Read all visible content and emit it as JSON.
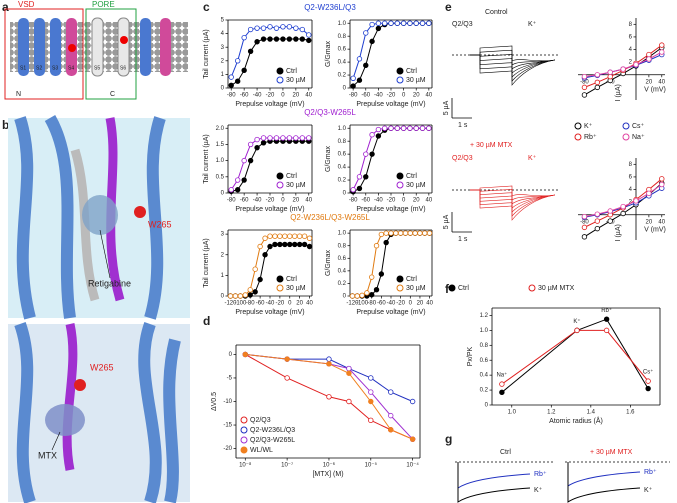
{
  "panel_labels": [
    "a",
    "b",
    "c",
    "d",
    "e",
    "f",
    "g"
  ],
  "panel_a": {
    "vsd": "VSD",
    "pore": "PORE",
    "segments": [
      "S1",
      "S2",
      "S3",
      "S4",
      "S5",
      "S6"
    ],
    "n": "N",
    "c": "C"
  },
  "panel_b": {
    "top_residue": "W265",
    "top_drug": "Retigabine",
    "bottom_residue": "W265",
    "bottom_drug": "MTX"
  },
  "panel_e": {
    "control": "Control",
    "mtx": "+ 30 µM MTX",
    "top_labels": [
      "Q2/Q3",
      "K⁺"
    ],
    "bottom_labels": [
      "Q2/Q3",
      "K⁺"
    ],
    "scale_current": [
      "5 µA",
      "5 µA"
    ],
    "scale_time": [
      "1 s",
      "1 s"
    ]
  },
  "panel_g": {
    "ctrl": "Ctrl",
    "mtx": "+ 30 µM MTX",
    "labels": [
      "Rb⁺",
      "K⁺",
      "Rb⁺",
      "K⁺"
    ]
  },
  "chart_data": [
    {
      "type": "line",
      "title": "Q2-W236L/Q3",
      "title_color": "#1f3fd0",
      "xlabel": "Prepulse voltage (mV)",
      "ylabel": "Tail current (µA)",
      "x": [
        -80,
        -70,
        -60,
        -50,
        -40,
        -30,
        -20,
        -10,
        0,
        10,
        20,
        30,
        40
      ],
      "xlim": [
        -85,
        45
      ],
      "xticks": [
        -80,
        -60,
        -40,
        -20,
        0,
        20,
        40
      ],
      "ylim": [
        0,
        5
      ],
      "yticks": [
        0,
        1,
        2,
        3,
        4,
        5
      ],
      "legend": "lower right",
      "series": [
        {
          "name": "Ctrl",
          "color": "#000000",
          "filled": true,
          "values": [
            0.2,
            0.5,
            1.3,
            2.7,
            3.4,
            3.6,
            3.6,
            3.6,
            3.6,
            3.6,
            3.6,
            3.6,
            3.5
          ]
        },
        {
          "name": "30 µM",
          "color": "#1f3fd0",
          "filled": false,
          "values": [
            0.8,
            2.0,
            3.7,
            4.3,
            4.4,
            4.4,
            4.5,
            4.4,
            4.5,
            4.5,
            4.4,
            4.3,
            3.9
          ]
        }
      ]
    },
    {
      "type": "line",
      "ylabel": "G/Gmax",
      "xlabel": "Prepulse voltage (mV)",
      "x": [
        -80,
        -70,
        -60,
        -50,
        -40,
        -30,
        -20,
        -10,
        0,
        10,
        20,
        30,
        40
      ],
      "xlim": [
        -85,
        45
      ],
      "xticks": [
        -80,
        -60,
        -40,
        -20,
        0,
        20,
        40
      ],
      "ylim": [
        0,
        1.05
      ],
      "yticks": [
        0,
        0.2,
        0.4,
        0.6,
        0.8,
        {
          "value": 1,
          "label": "1.0"
        }
      ],
      "legend": "lower right",
      "series": [
        {
          "name": "Ctrl",
          "color": "#000000",
          "filled": true,
          "values": [
            0.03,
            0.12,
            0.35,
            0.72,
            0.92,
            0.98,
            1,
            1,
            1,
            1,
            1,
            1,
            1
          ]
        },
        {
          "name": "30 µM",
          "color": "#1f3fd0",
          "filled": false,
          "values": [
            0.15,
            0.45,
            0.85,
            0.98,
            1,
            1,
            1,
            1,
            1,
            1,
            1,
            1,
            1
          ]
        }
      ]
    },
    {
      "type": "line",
      "title": "Q2/Q3-W265L",
      "title_color": "#a020d0",
      "xlabel": "Prepulse voltage (mV)",
      "ylabel": "Tail current (µA)",
      "x": [
        -80,
        -70,
        -60,
        -50,
        -40,
        -30,
        -20,
        -10,
        0,
        10,
        20,
        30,
        40
      ],
      "xlim": [
        -85,
        45
      ],
      "xticks": [
        -80,
        -60,
        -40,
        -20,
        0,
        20,
        40
      ],
      "ylim": [
        0,
        2.1
      ],
      "yticks": [
        0,
        0.5,
        {
          "value": 1,
          "label": "1.0"
        },
        1.5,
        {
          "value": 2,
          "label": "2.0"
        }
      ],
      "legend": "lower right",
      "series": [
        {
          "name": "Ctrl",
          "color": "#000000",
          "filled": true,
          "values": [
            0.05,
            0.1,
            0.4,
            1.0,
            1.4,
            1.55,
            1.6,
            1.6,
            1.6,
            1.6,
            1.6,
            1.6,
            1.6
          ]
        },
        {
          "name": "30 µM",
          "color": "#a020d0",
          "filled": false,
          "values": [
            0.1,
            0.4,
            1.0,
            1.5,
            1.65,
            1.7,
            1.7,
            1.7,
            1.7,
            1.7,
            1.7,
            1.7,
            1.7
          ]
        }
      ]
    },
    {
      "type": "line",
      "ylabel": "G/Gmax",
      "xlabel": "Prepulse voltage (mV)",
      "x": [
        -80,
        -70,
        -60,
        -50,
        -40,
        -30,
        -20,
        -10,
        0,
        10,
        20,
        30,
        40
      ],
      "xlim": [
        -85,
        45
      ],
      "xticks": [
        -80,
        -60,
        -40,
        -20,
        0,
        20,
        40
      ],
      "ylim": [
        0,
        1.05
      ],
      "yticks": [
        0,
        0.2,
        0.4,
        0.6,
        0.8,
        {
          "value": 1,
          "label": "1.0"
        }
      ],
      "legend": "lower right",
      "series": [
        {
          "name": "Ctrl",
          "color": "#000000",
          "filled": true,
          "values": [
            0.02,
            0.07,
            0.25,
            0.6,
            0.88,
            0.97,
            1,
            1,
            1,
            1,
            1,
            1,
            1
          ]
        },
        {
          "name": "30 µM",
          "color": "#a020d0",
          "filled": false,
          "values": [
            0.05,
            0.25,
            0.6,
            0.9,
            0.98,
            1,
            1,
            1,
            1,
            1,
            1,
            1,
            1
          ]
        }
      ]
    },
    {
      "type": "line",
      "title": "Q2-W236L/Q3-W265L",
      "title_color": "#e07a10",
      "xlabel": "Prepulse voltage (mV)",
      "ylabel": "Tail current (µA)",
      "x": [
        -120,
        -110,
        -100,
        -90,
        -80,
        -70,
        -60,
        -50,
        -40,
        -30,
        -20,
        -10,
        0,
        10,
        20,
        30,
        40
      ],
      "xlim": [
        -125,
        45
      ],
      "xticks": [
        -120,
        -100,
        -80,
        -60,
        -40,
        -20,
        0,
        20,
        40
      ],
      "ylim": [
        0,
        3.2
      ],
      "yticks": [
        0,
        1,
        2,
        3
      ],
      "legend": "lower right",
      "series": [
        {
          "name": "Ctrl",
          "color": "#000000",
          "filled": true,
          "values": [
            0,
            0,
            0,
            0,
            0.05,
            0.2,
            0.8,
            2.0,
            2.4,
            2.5,
            2.5,
            2.5,
            2.5,
            2.5,
            2.5,
            2.5,
            2.4
          ]
        },
        {
          "name": "30 µM",
          "color": "#e07a10",
          "filled": false,
          "values": [
            0,
            0,
            0,
            0.05,
            0.3,
            1.3,
            2.4,
            2.8,
            2.9,
            2.9,
            2.9,
            2.9,
            2.9,
            2.9,
            2.9,
            2.9,
            2.8
          ]
        }
      ]
    },
    {
      "type": "line",
      "ylabel": "G/Gmax",
      "xlabel": "Prepulse voltage (mV)",
      "x": [
        -120,
        -110,
        -100,
        -90,
        -80,
        -70,
        -60,
        -50,
        -40,
        -30,
        -20,
        -10,
        0,
        10,
        20,
        30,
        40
      ],
      "xlim": [
        -125,
        45
      ],
      "xticks": [
        -120,
        -100,
        -80,
        -60,
        -40,
        -20,
        0,
        20,
        40
      ],
      "ylim": [
        0,
        1.05
      ],
      "yticks": [
        0,
        0.2,
        0.4,
        0.6,
        0.8,
        {
          "value": 1,
          "label": "1.0"
        }
      ],
      "legend": "lower right",
      "series": [
        {
          "name": "Ctrl",
          "color": "#000000",
          "filled": true,
          "values": [
            0,
            0,
            0,
            0,
            0.02,
            0.1,
            0.35,
            0.85,
            0.98,
            1,
            1,
            1,
            1,
            1,
            1,
            1,
            1
          ]
        },
        {
          "name": "30 µM",
          "color": "#e07a10",
          "filled": false,
          "values": [
            0,
            0,
            0.01,
            0.05,
            0.3,
            0.8,
            0.98,
            1,
            1,
            1,
            1,
            1,
            1,
            1,
            1,
            1,
            1
          ]
        }
      ]
    },
    {
      "type": "line",
      "xscale": "log",
      "xlabel": "[MTX] (M)",
      "ylabel": "ΔV0.5",
      "x": [
        1e-08,
        1e-07,
        1e-06,
        3e-06,
        1e-05,
        3e-05,
        0.0001
      ],
      "xlim": [
        6e-09,
        0.00015
      ],
      "xticks": [
        {
          "value": 1e-08,
          "label": "10⁻⁸"
        },
        {
          "value": 1e-07,
          "label": "10⁻⁷"
        },
        {
          "value": 1e-06,
          "label": "10⁻⁶"
        },
        {
          "value": 1e-05,
          "label": "10⁻⁵"
        },
        {
          "value": 0.0001,
          "label": "10⁻⁴"
        }
      ],
      "ylim": [
        -22,
        2
      ],
      "yticks": [
        0,
        -5,
        -10,
        -15,
        -20
      ],
      "legend": "lower left",
      "series": [
        {
          "name": "Q2/Q3",
          "color": "#e02020",
          "filled": false,
          "values": [
            0,
            -5,
            -9,
            -10,
            -14,
            -16,
            -18
          ]
        },
        {
          "name": "Q2-W236L/Q3",
          "color": "#2030c0",
          "filled": false,
          "values": [
            0,
            -1,
            -1,
            -3,
            -5,
            -8,
            -10
          ]
        },
        {
          "name": "Q2/Q3-W265L",
          "color": "#a030d0",
          "filled": false,
          "values": [
            0,
            -1,
            -2,
            -3,
            -8,
            -13,
            -18
          ]
        },
        {
          "name": "WL/WL",
          "color": "#f08020",
          "filled": true,
          "values": [
            0,
            -1,
            -2,
            -4,
            -10,
            -16,
            -18
          ]
        }
      ]
    },
    {
      "type": "line",
      "axes_at_zero": true,
      "xlabel": "V (mV)",
      "ylabel": "I (µA)",
      "x": [
        -80,
        -60,
        -40,
        -20,
        0,
        20,
        40
      ],
      "xlim": [
        -90,
        45
      ],
      "xticks": [
        -80,
        -40,
        20,
        40
      ],
      "ylim": [
        -4,
        9
      ],
      "yticks": [
        2,
        4,
        6,
        8
      ],
      "legend": "below",
      "series": [
        {
          "name": "K⁺",
          "color": "#000000",
          "filled": false,
          "values": [
            -3.2,
            -2,
            -0.9,
            0.2,
            1.4,
            2.8,
            4.3
          ]
        },
        {
          "name": "Cs⁺",
          "color": "#2030c0",
          "filled": false,
          "values": [
            -0.5,
            -0.1,
            0.4,
            0.9,
            1.5,
            2.3,
            3.2
          ]
        },
        {
          "name": "Rb⁺",
          "color": "#e02020",
          "filled": false,
          "values": [
            -2.0,
            -1.2,
            -0.3,
            0.7,
            1.8,
            3.2,
            4.7
          ]
        },
        {
          "name": "Na⁺",
          "color": "#e040a0",
          "filled": false,
          "values": [
            -0.3,
            0,
            0.4,
            0.9,
            1.6,
            2.5,
            3.6
          ]
        }
      ]
    },
    {
      "type": "line",
      "axes_at_zero": true,
      "xlabel": "V (mV)",
      "ylabel": "I (µA)",
      "x": [
        -80,
        -60,
        -40,
        -20,
        0,
        20,
        40
      ],
      "xlim": [
        -90,
        45
      ],
      "xticks": [
        -80,
        -40,
        20,
        40
      ],
      "ylim": [
        -4,
        9
      ],
      "yticks": [
        2,
        4,
        6,
        8
      ],
      "series": [
        {
          "name": "K⁺",
          "color": "#000000",
          "filled": false,
          "values": [
            -3.5,
            -2.2,
            -1,
            0.2,
            1.6,
            3.2,
            5
          ]
        },
        {
          "name": "Cs⁺",
          "color": "#2030c0",
          "filled": false,
          "values": [
            -0.4,
            0,
            0.5,
            1.1,
            1.9,
            3,
            4.2
          ]
        },
        {
          "name": "Rb⁺",
          "color": "#e02020",
          "filled": false,
          "values": [
            -2,
            -1,
            0,
            1.1,
            2.4,
            4,
            5.7
          ]
        },
        {
          "name": "Na⁺",
          "color": "#e040a0",
          "filled": false,
          "values": [
            -0.3,
            0.1,
            0.6,
            1.3,
            2.2,
            3.4,
            4.8
          ]
        }
      ]
    },
    {
      "type": "line",
      "xlabel": "Atomic radius (Å)",
      "ylabel": "Px/PK",
      "x": [
        0.95,
        1.33,
        1.48,
        1.69
      ],
      "xlim": [
        0.9,
        1.75
      ],
      "xticks": [
        {
          "value": 1,
          "label": "1.0"
        },
        1.2,
        1.4,
        1.6
      ],
      "ylim": [
        0,
        1.3
      ],
      "yticks": [
        0,
        0.2,
        0.4,
        0.6,
        0.8,
        {
          "value": 1,
          "label": "1.0"
        },
        1.2
      ],
      "legend": "above",
      "annotations": [
        "Na⁺",
        "K⁺",
        "Rb⁺",
        "Cs⁺"
      ],
      "series": [
        {
          "name": "Ctrl",
          "color": "#000000",
          "filled": true,
          "values": [
            0.17,
            1.0,
            1.15,
            0.22
          ]
        },
        {
          "name": "30 µM MTX",
          "color": "#e02020",
          "filled": false,
          "values": [
            0.28,
            1.0,
            1.0,
            0.32
          ]
        }
      ]
    }
  ]
}
